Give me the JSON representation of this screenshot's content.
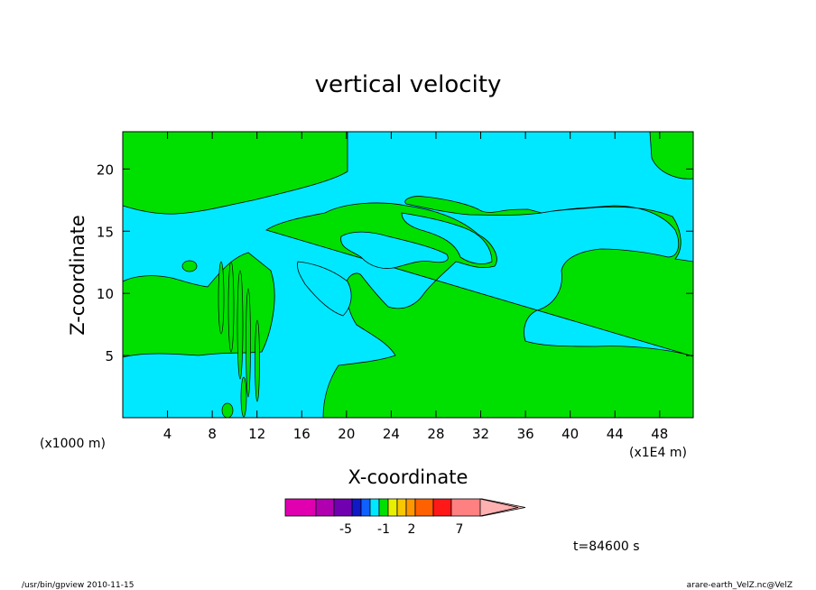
{
  "chart_data": {
    "type": "contour",
    "title": "vertical velocity",
    "xlabel": "X-coordinate",
    "ylabel": "Z-coordinate",
    "x_ticks": [
      "4",
      "8",
      "12",
      "16",
      "20",
      "24",
      "28",
      "32",
      "36",
      "40",
      "44",
      "48"
    ],
    "x_tick_values": [
      4,
      8,
      12,
      16,
      20,
      24,
      28,
      32,
      36,
      40,
      44,
      48
    ],
    "y_ticks": [
      "5",
      "10",
      "15",
      "20"
    ],
    "y_tick_values": [
      5,
      10,
      15,
      20
    ],
    "xlim": [
      0,
      51
    ],
    "ylim": [
      0,
      23
    ],
    "x_unit_left": "(x1000 m)",
    "x_unit_right": "(x1E4 m)",
    "time_label": "t=84600 s",
    "colorbar": {
      "labels": [
        "-5",
        "-1",
        "2",
        "7"
      ],
      "label_values": [
        -5,
        -1,
        2,
        7
      ],
      "colors": [
        "#e000b0",
        "#b000b0",
        "#7000b0",
        "#1018c8",
        "#1060ff",
        "#00e8ff",
        "#00e000",
        "#e8f000",
        "#f8c800",
        "#ff9800",
        "#ff6000",
        "#ff1818",
        "#ff8080",
        "#ffb0b0"
      ]
    },
    "fill_colors": {
      "background": "#00e8ff",
      "positive": "#00e000"
    }
  },
  "footer": {
    "left": "/usr/bin/gpview   2010-11-15",
    "right": "arare-earth_VelZ.nc@VelZ"
  }
}
